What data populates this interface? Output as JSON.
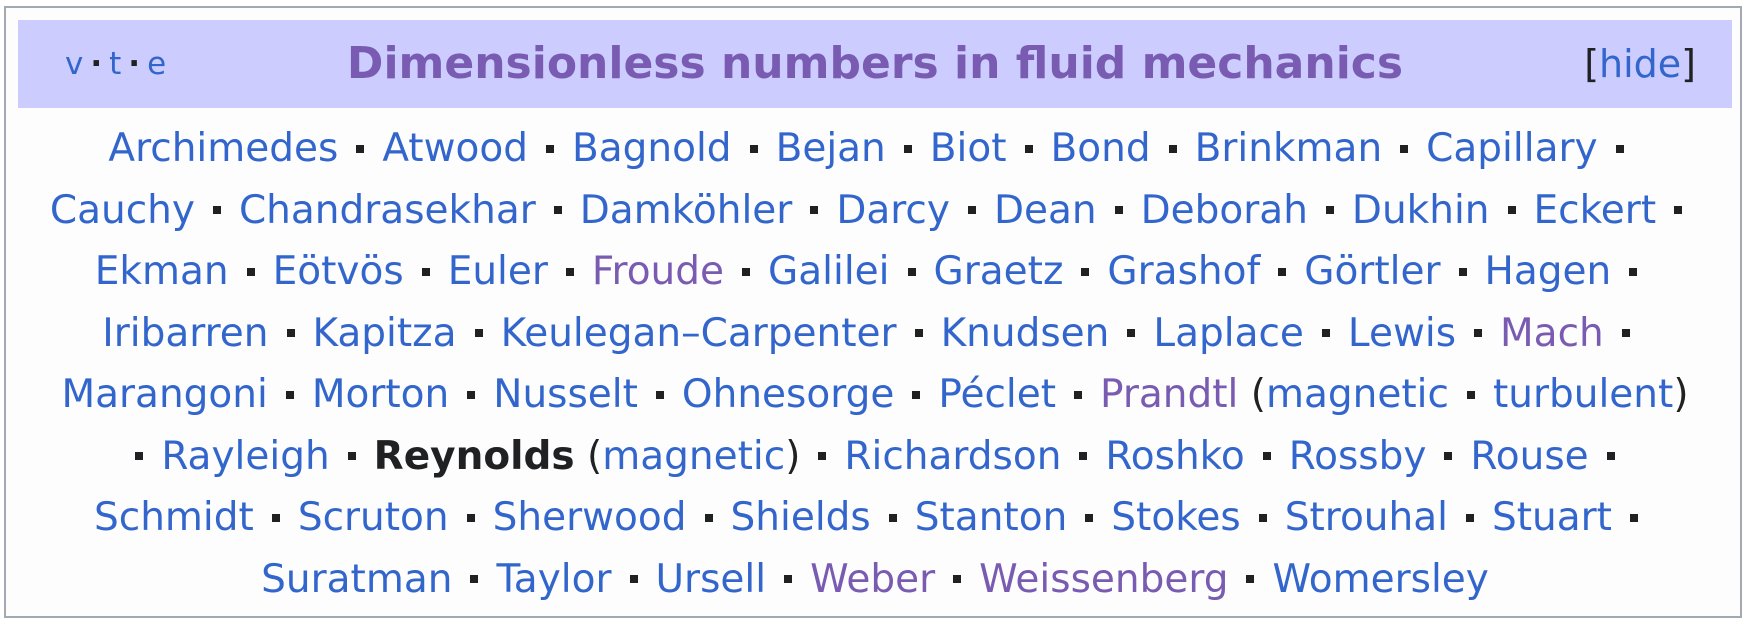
{
  "navbox": {
    "vte": [
      "v",
      "t",
      "e"
    ],
    "title": "Dimensionless numbers in fluid mechanics",
    "hide_label": "hide"
  },
  "lines": [
    [
      {
        "text": "Archimedes"
      },
      {
        "sep": true
      },
      {
        "text": "Atwood"
      },
      {
        "sep": true
      },
      {
        "text": "Bagnold"
      },
      {
        "sep": true
      },
      {
        "text": "Bejan"
      },
      {
        "sep": true
      },
      {
        "text": "Biot"
      },
      {
        "sep": true
      },
      {
        "text": "Bond"
      },
      {
        "sep": true
      },
      {
        "text": "Brinkman"
      },
      {
        "sep": true
      },
      {
        "text": "Capillary"
      },
      {
        "sep": true
      }
    ],
    [
      {
        "text": "Cauchy"
      },
      {
        "sep": true
      },
      {
        "text": "Chandrasekhar"
      },
      {
        "sep": true
      },
      {
        "text": "Damköhler"
      },
      {
        "sep": true
      },
      {
        "text": "Darcy"
      },
      {
        "sep": true
      },
      {
        "text": "Dean"
      },
      {
        "sep": true
      },
      {
        "text": "Deborah"
      },
      {
        "sep": true
      },
      {
        "text": "Dukhin"
      },
      {
        "sep": true
      },
      {
        "text": "Eckert"
      },
      {
        "sep": true
      }
    ],
    [
      {
        "text": "Ekman"
      },
      {
        "sep": true
      },
      {
        "text": "Eötvös"
      },
      {
        "sep": true
      },
      {
        "text": "Euler"
      },
      {
        "sep": true
      },
      {
        "text": "Froude",
        "visited": true
      },
      {
        "sep": true
      },
      {
        "text": "Galilei"
      },
      {
        "sep": true
      },
      {
        "text": "Graetz"
      },
      {
        "sep": true
      },
      {
        "text": "Grashof"
      },
      {
        "sep": true
      },
      {
        "text": "Görtler"
      },
      {
        "sep": true
      },
      {
        "text": "Hagen"
      },
      {
        "sep": true
      }
    ],
    [
      {
        "text": "Iribarren"
      },
      {
        "sep": true
      },
      {
        "text": "Kapitza"
      },
      {
        "sep": true
      },
      {
        "text": "Keulegan–Carpenter"
      },
      {
        "sep": true
      },
      {
        "text": "Knudsen"
      },
      {
        "sep": true
      },
      {
        "text": "Laplace"
      },
      {
        "sep": true
      },
      {
        "text": "Lewis"
      },
      {
        "sep": true
      },
      {
        "text": "Mach",
        "visited": true
      },
      {
        "sep": true
      }
    ],
    [
      {
        "text": "Marangoni"
      },
      {
        "sep": true
      },
      {
        "text": "Morton"
      },
      {
        "sep": true
      },
      {
        "text": "Nusselt"
      },
      {
        "sep": true
      },
      {
        "text": "Ohnesorge"
      },
      {
        "sep": true
      },
      {
        "text": "Péclet"
      },
      {
        "sep": true
      },
      {
        "text": "Prandtl",
        "visited": true
      },
      {
        "paren": " ("
      },
      {
        "text": "magnetic"
      },
      {
        "sep": true
      },
      {
        "text": "turbulent"
      },
      {
        "paren": ")"
      }
    ],
    [
      {
        "sep": true
      },
      {
        "text": "Rayleigh"
      },
      {
        "sep": true
      },
      {
        "text": "Reynolds",
        "current": true
      },
      {
        "paren": " ("
      },
      {
        "text": "magnetic"
      },
      {
        "paren": ")"
      },
      {
        "sep": true
      },
      {
        "text": "Richardson"
      },
      {
        "sep": true
      },
      {
        "text": "Roshko"
      },
      {
        "sep": true
      },
      {
        "text": "Rossby"
      },
      {
        "sep": true
      },
      {
        "text": "Rouse"
      },
      {
        "sep": true
      }
    ],
    [
      {
        "text": "Schmidt"
      },
      {
        "sep": true
      },
      {
        "text": "Scruton"
      },
      {
        "sep": true
      },
      {
        "text": "Sherwood"
      },
      {
        "sep": true
      },
      {
        "text": "Shields"
      },
      {
        "sep": true
      },
      {
        "text": "Stanton"
      },
      {
        "sep": true
      },
      {
        "text": "Stokes"
      },
      {
        "sep": true
      },
      {
        "text": "Strouhal"
      },
      {
        "sep": true
      },
      {
        "text": "Stuart"
      },
      {
        "sep": true
      }
    ],
    [
      {
        "text": "Suratman"
      },
      {
        "sep": true
      },
      {
        "text": "Taylor"
      },
      {
        "sep": true
      },
      {
        "text": "Ursell"
      },
      {
        "sep": true
      },
      {
        "text": "Weber",
        "visited": true
      },
      {
        "sep": true
      },
      {
        "text": "Weissenberg",
        "visited": true
      },
      {
        "sep": true
      },
      {
        "text": "Womersley"
      }
    ]
  ],
  "colors": {
    "link": "#3366cc",
    "visited_link": "#795cb2",
    "title_bg": "#ccccff",
    "border": "#a2a9b1"
  }
}
